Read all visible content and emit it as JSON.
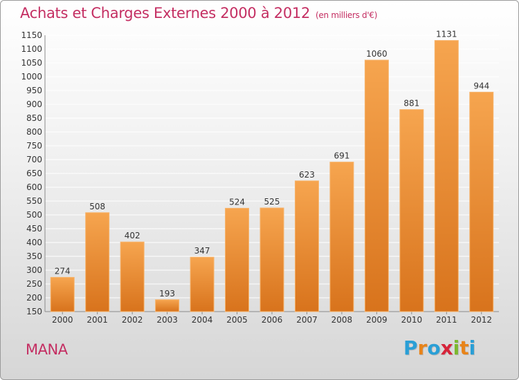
{
  "header": {
    "title": "Achats et Charges Externes 2000 à 2012",
    "subtitle": "(en milliers d'€)"
  },
  "footer": {
    "commune": "MANA",
    "logo": [
      "P",
      "r",
      "o",
      "x",
      "i",
      "t",
      "i"
    ],
    "logo_colors": [
      "#2a9fd6",
      "#e8841a",
      "#2a9fd6",
      "#d6243a",
      "#7cb82f",
      "#e8841a",
      "#2a9fd6"
    ]
  },
  "colors": {
    "bar_top": "#f6a54f",
    "bar_bottom": "#d8731c",
    "text": "#333333",
    "title": "#c42e62"
  },
  "chart_data": {
    "type": "bar",
    "categories": [
      "2000",
      "2001",
      "2002",
      "2003",
      "2004",
      "2005",
      "2006",
      "2007",
      "2008",
      "2009",
      "2010",
      "2011",
      "2012"
    ],
    "values": [
      274,
      508,
      402,
      193,
      347,
      524,
      525,
      623,
      691,
      1060,
      881,
      1131,
      944
    ],
    "title": "Achats et Charges Externes 2000 à 2012",
    "subtitle": "(en milliers d'€)",
    "xlabel": "",
    "ylabel": "",
    "ylim": [
      150,
      1150
    ],
    "yticks": [
      150,
      200,
      250,
      300,
      350,
      400,
      450,
      500,
      550,
      600,
      650,
      700,
      750,
      800,
      850,
      900,
      950,
      1000,
      1050,
      1100,
      1150
    ],
    "grid": true,
    "legend": "none"
  }
}
